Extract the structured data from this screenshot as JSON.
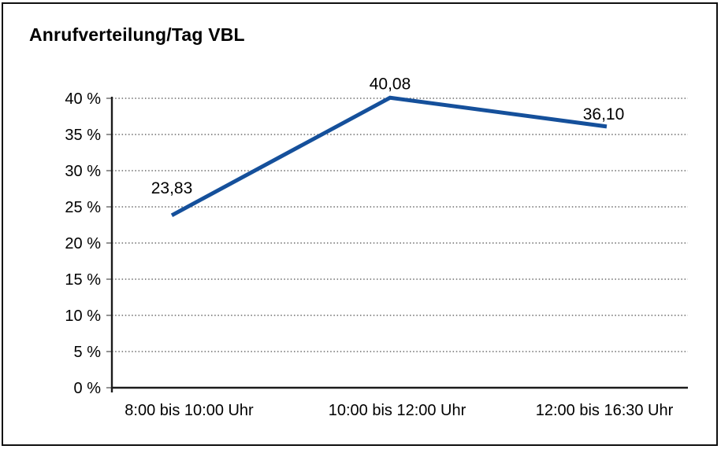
{
  "chart_data": {
    "type": "line",
    "title": "Anrufverteilung/Tag VBL",
    "categories": [
      "8:00 bis 10:00 Uhr",
      "10:00 bis 12:00 Uhr",
      "12:00 bis 16:30 Uhr"
    ],
    "series": [
      {
        "values": [
          23.83,
          40.08,
          36.1
        ],
        "labels": [
          "23,83",
          "40,08",
          "36,10"
        ],
        "color": "#15509B"
      }
    ],
    "xlabel": "",
    "ylabel": "",
    "ylim": [
      0,
      40
    ],
    "ytick_values": [
      0,
      5,
      10,
      15,
      20,
      25,
      30,
      35,
      40
    ],
    "ytick_labels": [
      "0 %",
      "5 %",
      "10 %",
      "15 %",
      "20 %",
      "25 %",
      "30 %",
      "35 %",
      "40 %"
    ],
    "grid": "horizontal-dotted",
    "legend": "none",
    "frame_color": "#0f0f0f"
  }
}
